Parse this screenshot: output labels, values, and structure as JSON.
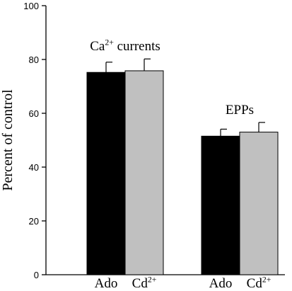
{
  "chart_data": {
    "type": "bar",
    "ylabel": "Percent of control",
    "ylim": [
      0,
      100
    ],
    "yticks": [
      0,
      20,
      40,
      60,
      80,
      100
    ],
    "groups": [
      {
        "label": "Ca2+ currents",
        "label_base": "Ca",
        "label_sup": "2+",
        "label_rest": " currents",
        "bars": [
          {
            "label": "Ado",
            "label_base": "Ado",
            "label_sup": "",
            "value": 75.2,
            "error": 3.8,
            "color": "#000000"
          },
          {
            "label": "Cd2+",
            "label_base": "Cd",
            "label_sup": "2+",
            "value": 75.8,
            "error": 4.4,
            "color": "#c0c0c0"
          }
        ]
      },
      {
        "label": "EPPs",
        "label_base": "EPPs",
        "label_sup": "",
        "label_rest": "",
        "bars": [
          {
            "label": "Ado",
            "label_base": "Ado",
            "label_sup": "",
            "value": 51.5,
            "error": 2.6,
            "color": "#000000"
          },
          {
            "label": "Cd2+",
            "label_base": "Cd",
            "label_sup": "2+",
            "value": 53.0,
            "error": 3.6,
            "color": "#c0c0c0"
          }
        ]
      }
    ]
  }
}
